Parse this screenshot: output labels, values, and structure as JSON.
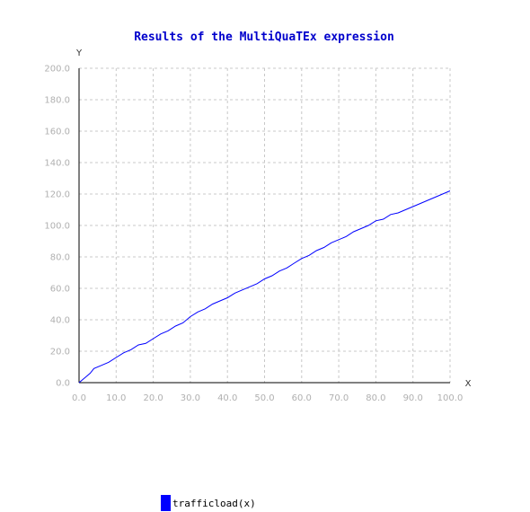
{
  "chart_data": {
    "type": "line",
    "title": "Results of the MultiQuaTEx expression",
    "xlabel": "X",
    "ylabel": "Y",
    "xlim": [
      0,
      100
    ],
    "ylim": [
      0,
      200
    ],
    "x_ticks": [
      "0.0",
      "10.0",
      "20.0",
      "30.0",
      "40.0",
      "50.0",
      "60.0",
      "70.0",
      "80.0",
      "90.0",
      "100.0"
    ],
    "y_ticks": [
      "0.0",
      "20.0",
      "40.0",
      "60.0",
      "80.0",
      "100.0",
      "120.0",
      "140.0",
      "160.0",
      "180.0",
      "200.0"
    ],
    "grid": true,
    "legend_position": "bottom",
    "series": [
      {
        "name": "trafficload(x)",
        "color": "#0000ff",
        "x": [
          0,
          2,
          3,
          4,
          6,
          8,
          10,
          12,
          14,
          16,
          18,
          20,
          22,
          24,
          26,
          28,
          30,
          32,
          34,
          36,
          38,
          40,
          42,
          44,
          46,
          48,
          50,
          52,
          54,
          56,
          58,
          60,
          62,
          64,
          66,
          68,
          70,
          72,
          74,
          76,
          78,
          80,
          82,
          84,
          86,
          88,
          90,
          92,
          94,
          96,
          98,
          100
        ],
        "y": [
          0,
          4,
          6,
          9,
          11,
          13,
          16,
          19,
          21,
          24,
          25,
          28,
          31,
          33,
          36,
          38,
          42,
          45,
          47,
          50,
          52,
          54,
          57,
          59,
          61,
          63,
          66,
          68,
          71,
          73,
          76,
          79,
          81,
          84,
          86,
          89,
          91,
          93,
          96,
          98,
          100,
          103,
          104,
          107,
          108,
          110,
          112,
          114,
          116,
          118,
          120,
          122
        ]
      }
    ]
  }
}
